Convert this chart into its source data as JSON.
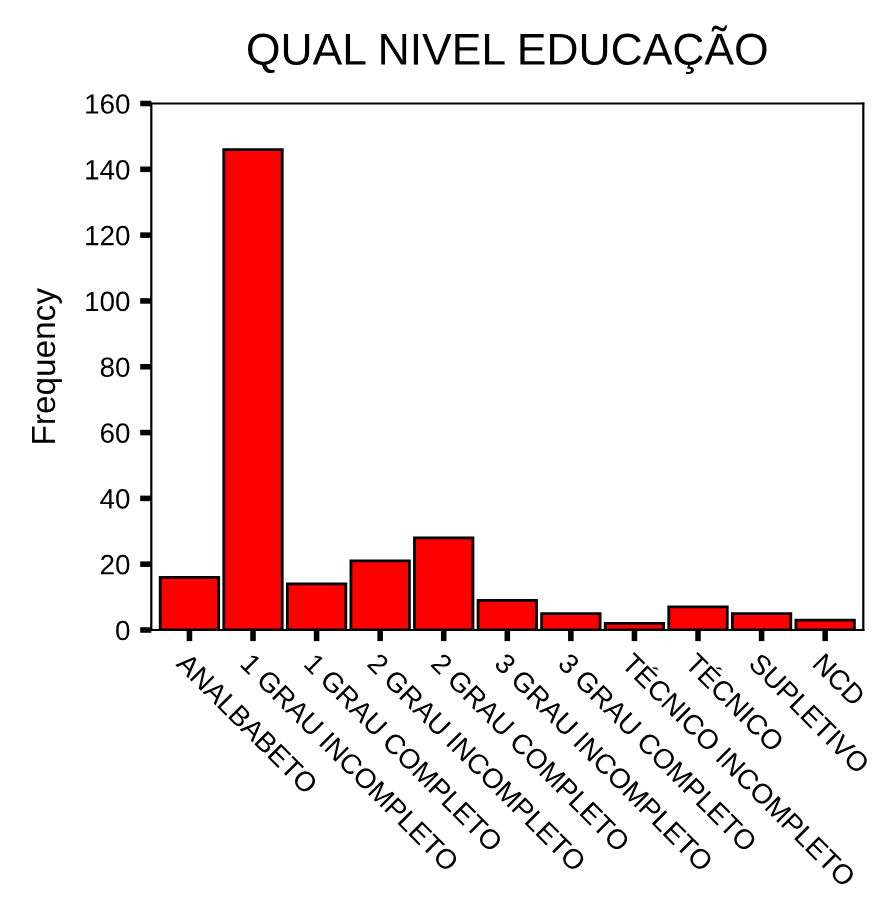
{
  "chart_data": {
    "type": "bar",
    "title": "QUAL NIVEL EDUCAÇÃO",
    "ylabel": "Frequency",
    "categories": [
      "ANALBABETO",
      "1 GRAU INCOMPLETO",
      "1 GRAU COMPLETO",
      "2 GRAU INCOMPLETO",
      "2 GRAU COMPLETO",
      "3 GRAU INCOMPLETO",
      "3 GRAU COMPLETO",
      "TÉCNICO INCOMPLETO",
      "TÉCNICO",
      "SUPLETIVO",
      "NCD"
    ],
    "values": [
      16,
      146,
      14,
      21,
      28,
      9,
      5,
      2,
      7,
      5,
      3
    ],
    "color": "#ff0000",
    "ylim": [
      0,
      160
    ],
    "yticks": [
      0,
      20,
      40,
      60,
      80,
      100,
      120,
      140,
      160
    ],
    "grid": false
  }
}
